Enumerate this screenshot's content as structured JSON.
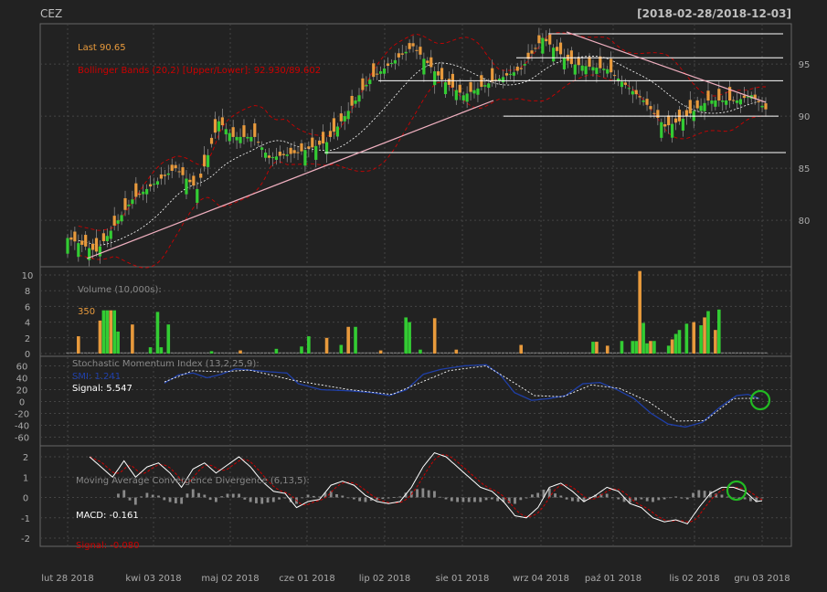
{
  "header": {
    "title": "CEZ",
    "range": "[2018-02-28/2018-12-03]"
  },
  "colors": {
    "bg": "#222222",
    "panel_border": "#666666",
    "grid": "#444444",
    "up": "#33cc33",
    "down": "#e89a3c",
    "bb": "#cc0000",
    "ma": "#ffffff",
    "trend": "#f0b0c0",
    "smi": "#1f3fa8",
    "signal": "#ffffff",
    "hist": "#8a8a8a",
    "marker": "#22bb22"
  },
  "x_labels": [
    "lut 28 2018",
    "kwi 03 2018",
    "maj 02 2018",
    "cze 01 2018",
    "lip 02 2018",
    "sie 01 2018",
    "wrz 04 2018",
    "paź 01 2018",
    "lis 02 2018",
    "gru 03 2018"
  ],
  "price_panel": {
    "last_label": "Last 90.65",
    "bb_label": "Bollinger Bands (20,2) [Upper/Lower]: 92.930/89.602",
    "y_ticks": [
      "80",
      "85",
      "90",
      "95"
    ]
  },
  "volume_panel": {
    "label": "Volume (10,000s):",
    "value": "350",
    "y_ticks": [
      "0",
      "2",
      "4",
      "6",
      "8",
      "10"
    ]
  },
  "smi_panel": {
    "label": "Stochastic Momentum Index (13,2,25,9):",
    "smi": "SMI: 1.241",
    "signal": "Signal: 5.547",
    "y_ticks": [
      "-60",
      "-40",
      "-20",
      "0",
      "20",
      "40",
      "60"
    ]
  },
  "macd_panel": {
    "label": "Moving Average Convergence Divergence (6,13,5):",
    "macd": "MACD: -0.161",
    "signal": "Signal: -0.080",
    "y_ticks": [
      "-2",
      "-1",
      "0",
      "1",
      "2"
    ]
  },
  "chart_data": [
    {
      "type": "candlestick",
      "title": "CEZ",
      "ylim": [
        75.5,
        98.5
      ],
      "close_anchors": [
        [
          0,
          78.3
        ],
        [
          8,
          77
        ],
        [
          18,
          82
        ],
        [
          30,
          85
        ],
        [
          36,
          83
        ],
        [
          42,
          89.5
        ],
        [
          46,
          88
        ],
        [
          52,
          88
        ],
        [
          56,
          86
        ],
        [
          64,
          86.5
        ],
        [
          72,
          87.5
        ],
        [
          84,
          93.5
        ],
        [
          96,
          96.7
        ],
        [
          104,
          93.5
        ],
        [
          110,
          92
        ],
        [
          118,
          93.3
        ],
        [
          126,
          94.5
        ],
        [
          132,
          97.5
        ],
        [
          140,
          95
        ],
        [
          150,
          94.5
        ],
        [
          160,
          91.5
        ],
        [
          166,
          89
        ],
        [
          170,
          89.5
        ],
        [
          178,
          91.5
        ],
        [
          186,
          91.5
        ],
        [
          190,
          92
        ],
        [
          194,
          90.65
        ]
      ],
      "horizontal_lines": [
        97.9,
        95.6,
        93.4,
        90.0,
        86.5
      ],
      "last": 90.65,
      "bb_upper": 92.93,
      "bb_lower": 89.602
    },
    {
      "type": "bar",
      "name": "Volume (10,000s)",
      "ylim": [
        0,
        11
      ],
      "bars": [
        [
          3,
          2.2
        ],
        [
          9,
          4.2
        ],
        [
          10,
          5.5
        ],
        [
          11,
          5.5
        ],
        [
          12,
          5.5
        ],
        [
          13,
          5.5
        ],
        [
          14,
          2.8
        ],
        [
          18,
          3.7
        ],
        [
          23,
          0.8
        ],
        [
          25,
          5.3
        ],
        [
          26,
          0.8
        ],
        [
          28,
          3.7
        ],
        [
          40,
          0.3
        ],
        [
          48,
          0.4
        ],
        [
          58,
          0.6
        ],
        [
          65,
          0.9
        ],
        [
          67,
          2.2
        ],
        [
          72,
          2.0
        ],
        [
          76,
          1.1
        ],
        [
          78,
          3.4
        ],
        [
          80,
          3.4
        ],
        [
          87,
          0.4
        ],
        [
          94,
          4.6
        ],
        [
          95,
          4.0
        ],
        [
          98,
          0.5
        ],
        [
          102,
          4.5
        ],
        [
          108,
          0.5
        ],
        [
          126,
          1.1
        ],
        [
          146,
          1.5
        ],
        [
          147,
          1.5
        ],
        [
          150,
          1.0
        ],
        [
          154,
          1.6
        ],
        [
          157,
          1.6
        ],
        [
          158,
          1.6
        ],
        [
          159,
          10.5
        ],
        [
          160,
          3.9
        ],
        [
          161,
          1.3
        ],
        [
          162,
          1.6
        ],
        [
          163,
          1.6
        ],
        [
          167,
          1.0
        ],
        [
          168,
          1.8
        ],
        [
          169,
          2.5
        ],
        [
          170,
          3.0
        ],
        [
          172,
          3.8
        ],
        [
          174,
          4.0
        ],
        [
          176,
          3.6
        ],
        [
          177,
          4.6
        ],
        [
          178,
          5.4
        ],
        [
          180,
          3.0
        ],
        [
          181,
          5.6
        ]
      ]
    },
    {
      "type": "line",
      "name": "SMI",
      "ylim": [
        -70,
        70
      ],
      "smi_anchors": [
        [
          25,
          31
        ],
        [
          30,
          45
        ],
        [
          35,
          48
        ],
        [
          40,
          40
        ],
        [
          45,
          46
        ],
        [
          50,
          55
        ],
        [
          55,
          53
        ],
        [
          62,
          50
        ],
        [
          68,
          48
        ],
        [
          72,
          30
        ],
        [
          80,
          20
        ],
        [
          90,
          18
        ],
        [
          98,
          15
        ],
        [
          104,
          10
        ],
        [
          110,
          20
        ],
        [
          116,
          46
        ],
        [
          122,
          54
        ],
        [
          130,
          60
        ],
        [
          138,
          62
        ],
        [
          143,
          45
        ],
        [
          148,
          15
        ],
        [
          154,
          2
        ],
        [
          160,
          5
        ],
        [
          166,
          10
        ],
        [
          172,
          30
        ],
        [
          178,
          32
        ],
        [
          184,
          20
        ],
        [
          190,
          5
        ],
        [
          196,
          -20
        ],
        [
          202,
          -38
        ],
        [
          208,
          -43
        ],
        [
          214,
          -35
        ],
        [
          220,
          -10
        ],
        [
          226,
          10
        ],
        [
          230,
          12
        ],
        [
          234,
          5
        ]
      ],
      "signal_anchors": [
        [
          25,
          33
        ],
        [
          35,
          52
        ],
        [
          45,
          50
        ],
        [
          55,
          53
        ],
        [
          70,
          36
        ],
        [
          90,
          20
        ],
        [
          105,
          12
        ],
        [
          115,
          32
        ],
        [
          125,
          52
        ],
        [
          138,
          60
        ],
        [
          145,
          40
        ],
        [
          155,
          10
        ],
        [
          165,
          8
        ],
        [
          175,
          28
        ],
        [
          185,
          22
        ],
        [
          195,
          0
        ],
        [
          205,
          -33
        ],
        [
          215,
          -32
        ],
        [
          225,
          5
        ],
        [
          234,
          5.5
        ]
      ]
    },
    {
      "type": "line",
      "name": "MACD",
      "ylim": [
        -2.6,
        2.4
      ],
      "macd_anchors": [
        [
          0,
          2.0
        ],
        [
          4,
          1.5
        ],
        [
          8,
          1.0
        ],
        [
          12,
          1.8
        ],
        [
          16,
          1.0
        ],
        [
          20,
          1.5
        ],
        [
          24,
          1.7
        ],
        [
          28,
          1.2
        ],
        [
          32,
          0.5
        ],
        [
          36,
          1.4
        ],
        [
          40,
          1.7
        ],
        [
          44,
          1.2
        ],
        [
          48,
          1.6
        ],
        [
          52,
          2.0
        ],
        [
          56,
          1.5
        ],
        [
          60,
          0.8
        ],
        [
          64,
          0.3
        ],
        [
          68,
          0.2
        ],
        [
          72,
          -0.5
        ],
        [
          76,
          -0.2
        ],
        [
          80,
          -0.1
        ],
        [
          84,
          0.6
        ],
        [
          88,
          0.8
        ],
        [
          92,
          0.6
        ],
        [
          96,
          0.1
        ],
        [
          100,
          -0.2
        ],
        [
          104,
          -0.3
        ],
        [
          108,
          -0.2
        ],
        [
          112,
          0.5
        ],
        [
          116,
          1.5
        ],
        [
          120,
          2.2
        ],
        [
          124,
          2.0
        ],
        [
          128,
          1.5
        ],
        [
          132,
          1.0
        ],
        [
          136,
          0.5
        ],
        [
          140,
          0.3
        ],
        [
          144,
          -0.2
        ],
        [
          148,
          -0.9
        ],
        [
          152,
          -1.0
        ],
        [
          156,
          -0.5
        ],
        [
          160,
          0.5
        ],
        [
          164,
          0.7
        ],
        [
          168,
          0.3
        ],
        [
          172,
          -0.2
        ],
        [
          176,
          0.1
        ],
        [
          180,
          0.5
        ],
        [
          184,
          0.3
        ],
        [
          188,
          -0.3
        ],
        [
          192,
          -0.5
        ],
        [
          196,
          -1.0
        ],
        [
          200,
          -1.2
        ],
        [
          204,
          -1.1
        ],
        [
          208,
          -1.3
        ],
        [
          212,
          -0.5
        ],
        [
          216,
          0.2
        ],
        [
          220,
          0.5
        ],
        [
          224,
          0.5
        ],
        [
          228,
          0.3
        ],
        [
          232,
          -0.2
        ],
        [
          234,
          -0.16
        ]
      ]
    }
  ]
}
